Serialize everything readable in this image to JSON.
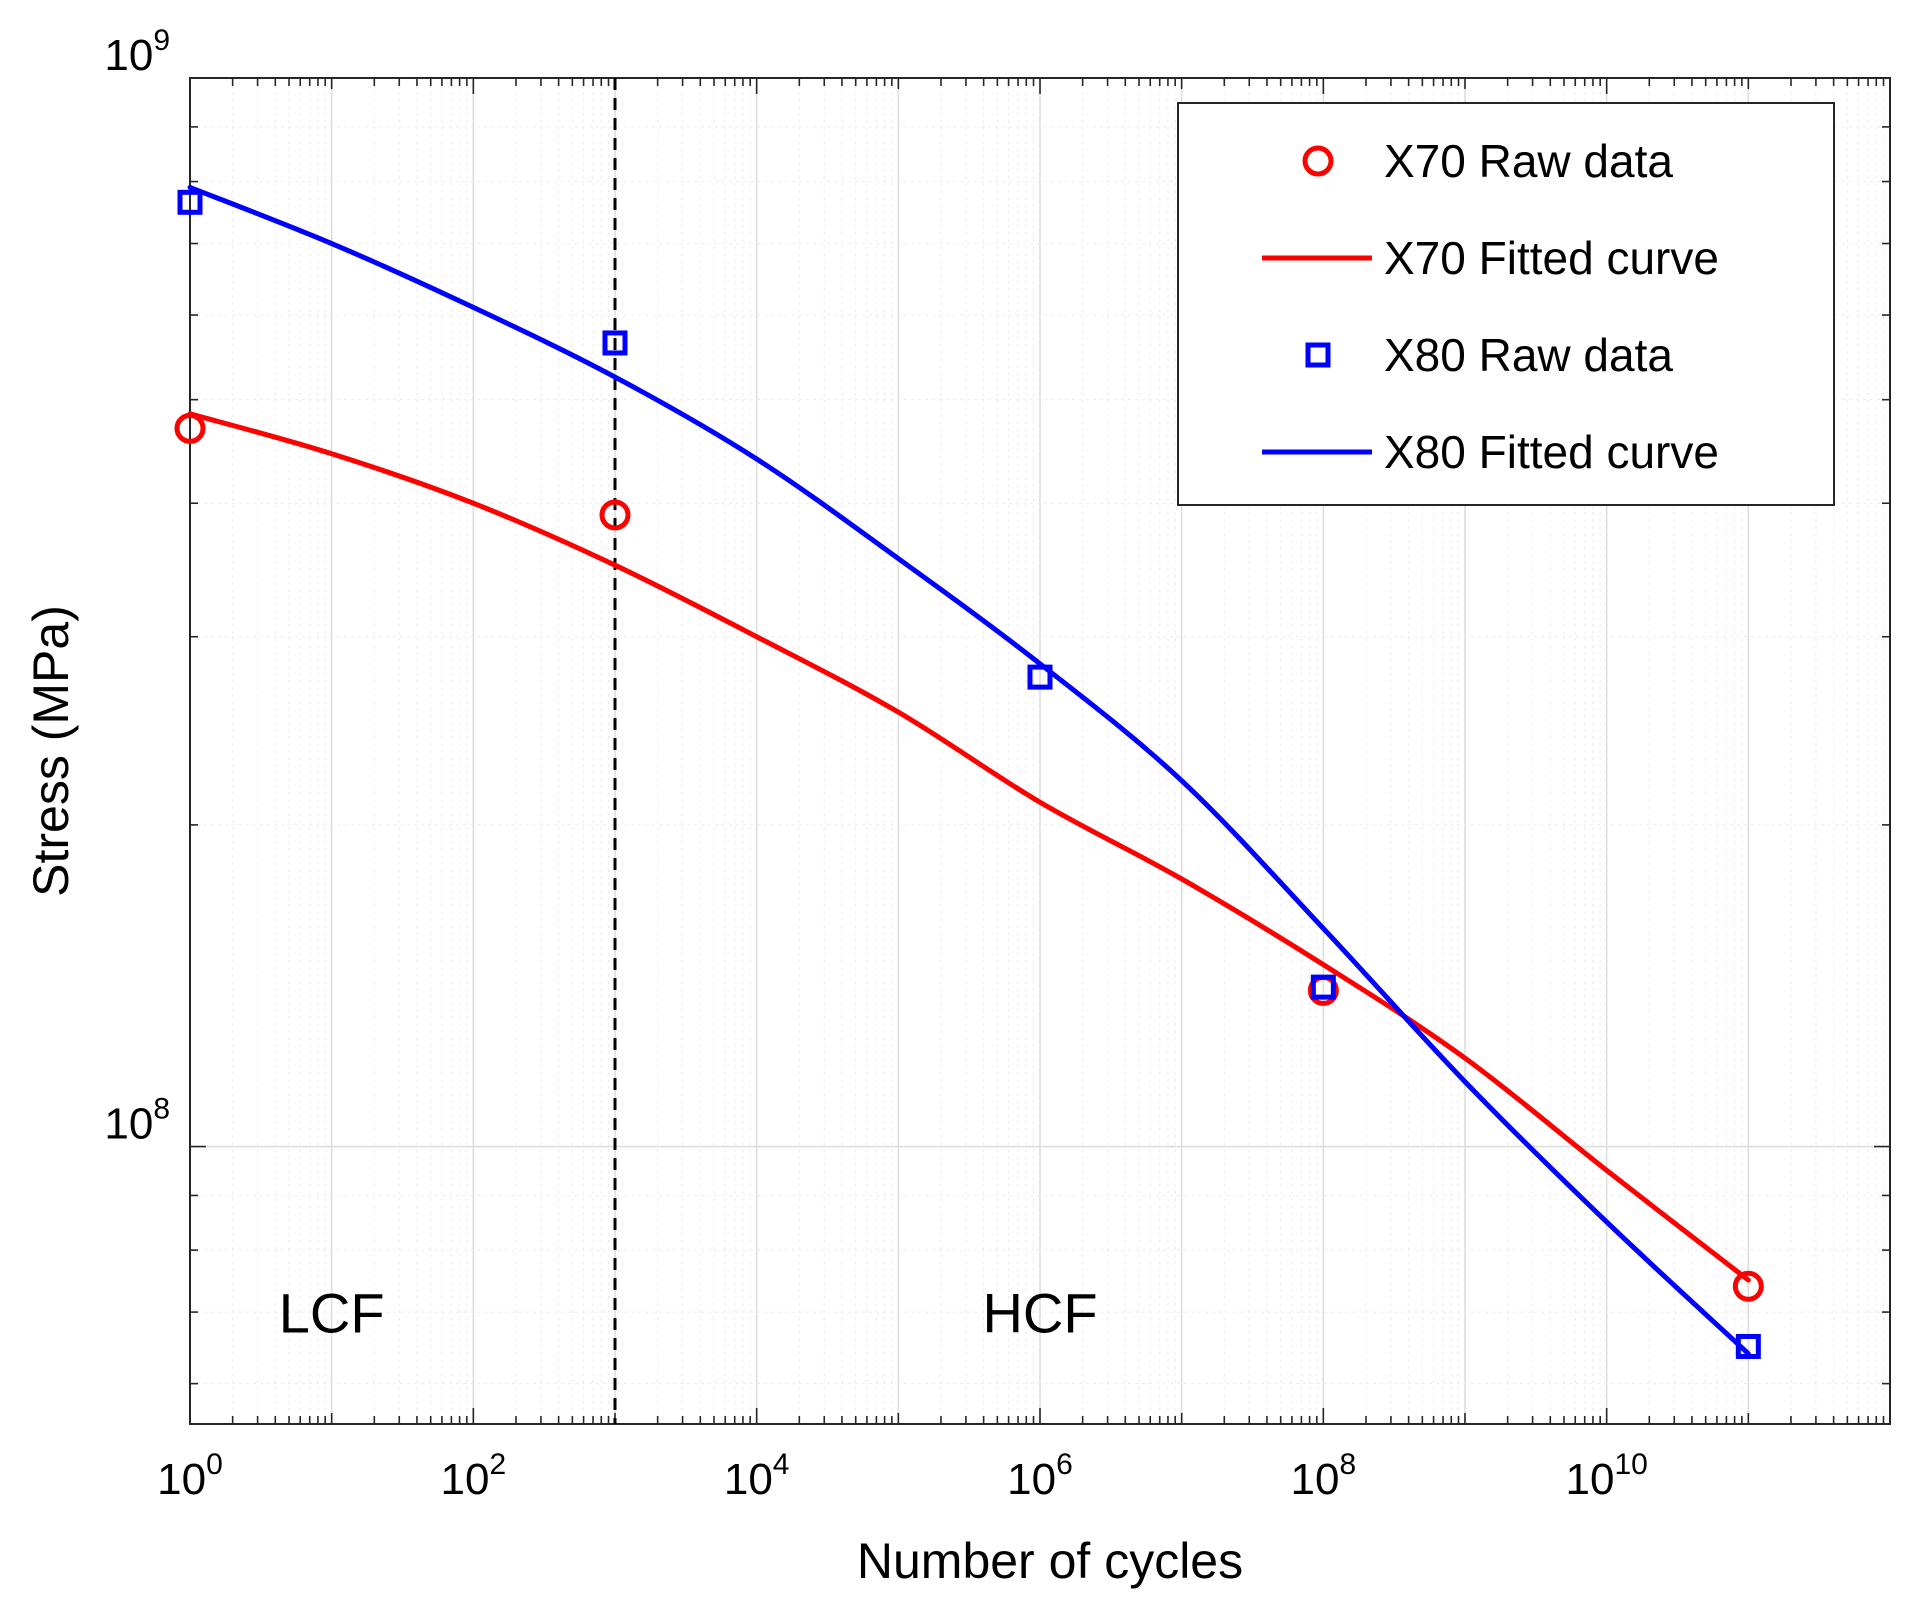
{
  "chart_data": {
    "type": "line",
    "title": "",
    "xlabel": "Number of cycles",
    "ylabel": "Stress (MPa)",
    "x_scale": "log",
    "y_scale": "log",
    "xlim": [
      1,
      1000000000000
    ],
    "ylim": [
      55000000,
      1000000000
    ],
    "grid": true,
    "x_ticks": [
      {
        "base": "10",
        "exp": "0"
      },
      {
        "base": "10",
        "exp": "2"
      },
      {
        "base": "10",
        "exp": "4"
      },
      {
        "base": "10",
        "exp": "6"
      },
      {
        "base": "10",
        "exp": "8"
      },
      {
        "base": "10",
        "exp": "10"
      }
    ],
    "y_ticks": [
      {
        "base": "10",
        "exp": "8"
      },
      {
        "base": "10",
        "exp": "9"
      }
    ],
    "series": [
      {
        "name": "X70 Raw data",
        "kind": "scatter",
        "marker": "circle",
        "color": "#ff0000",
        "x": [
          1,
          1000,
          100000000,
          100000000000
        ],
        "y": [
          470000000,
          390000000,
          140000000,
          74000000
        ]
      },
      {
        "name": "X70 Fitted curve",
        "kind": "line",
        "color": "#ff0000",
        "x": [
          1,
          10,
          100,
          1000,
          10000,
          100000,
          1000000,
          10000000,
          100000000,
          1000000000,
          10000000000,
          100000000000
        ],
        "y": [
          485000000,
          445000000,
          400000000,
          350000000,
          300000000,
          255000000,
          210000000,
          178000000,
          148000000,
          121000000,
          95000000,
          75000000
        ]
      },
      {
        "name": "X80 Raw data",
        "kind": "scatter",
        "marker": "square",
        "color": "#0000ff",
        "x": [
          1,
          1000,
          1000000,
          100000000,
          100000000000
        ],
        "y": [
          765000000,
          565000000,
          275000000,
          141000000,
          65000000
        ]
      },
      {
        "name": "X80 Fitted curve",
        "kind": "line",
        "color": "#0000ff",
        "x": [
          1,
          10,
          100,
          1000,
          10000,
          100000,
          1000000,
          10000000,
          100000000,
          1000000000,
          10000000000,
          100000000000
        ],
        "y": [
          790000000,
          700000000,
          610000000,
          525000000,
          440000000,
          355000000,
          283000000,
          220000000,
          160000000,
          115000000,
          85000000,
          64000000
        ]
      }
    ],
    "vline": {
      "x": 1000,
      "style": "dashed",
      "color": "#000000"
    },
    "annotations": [
      {
        "text": "LCF",
        "x": 10,
        "y": 67000000
      },
      {
        "text": "HCF",
        "x": 1000000,
        "y": 67000000
      }
    ],
    "legend": {
      "position": "top-right",
      "entries": [
        "X70 Raw data",
        "X70 Fitted curve",
        "X80 Raw data",
        "X80 Fitted curve"
      ]
    }
  }
}
